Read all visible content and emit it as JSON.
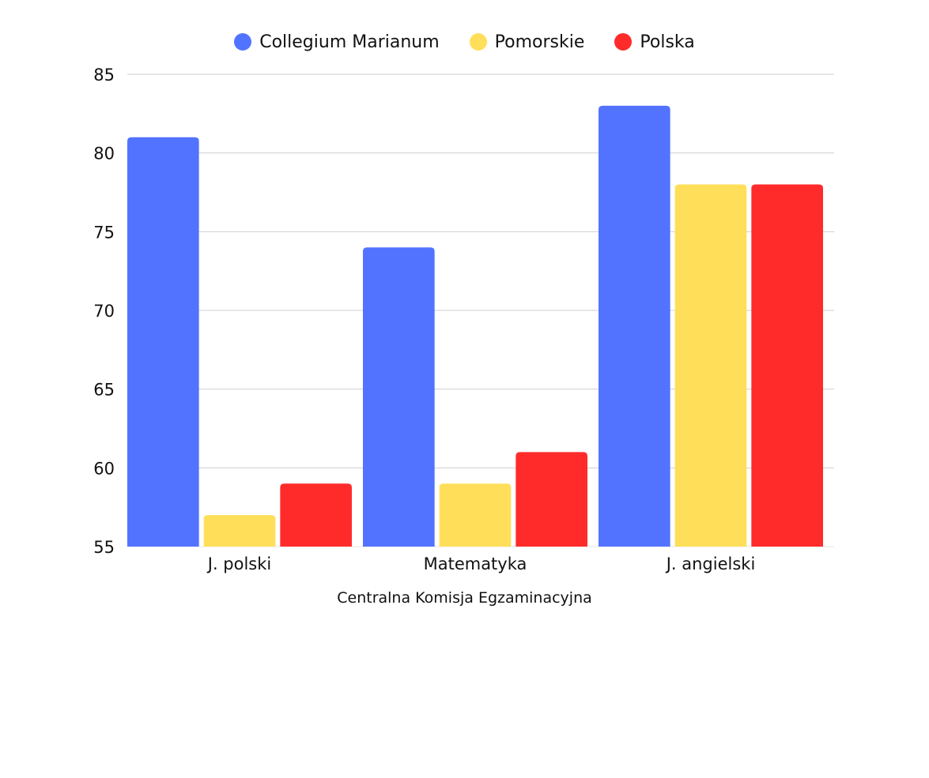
{
  "chart_data": {
    "type": "bar",
    "categories": [
      "J. polski",
      "Matematyka",
      "J. angielski"
    ],
    "series": [
      {
        "name": "Collegium Marianum",
        "color": "#5273ff",
        "values": [
          81,
          74,
          83
        ]
      },
      {
        "name": "Pomorskie",
        "color": "#ffdf5a",
        "values": [
          57,
          59,
          78
        ]
      },
      {
        "name": "Polska",
        "color": "#ff2b2b",
        "values": [
          59,
          61,
          78
        ]
      }
    ],
    "ylim": [
      55,
      85
    ],
    "yticks": [
      55,
      60,
      65,
      70,
      75,
      80,
      85
    ],
    "xlabel": "Centralna Komisja Egzaminacyjna",
    "ylabel": "",
    "title": "",
    "grid": true,
    "legend": "top-center"
  }
}
